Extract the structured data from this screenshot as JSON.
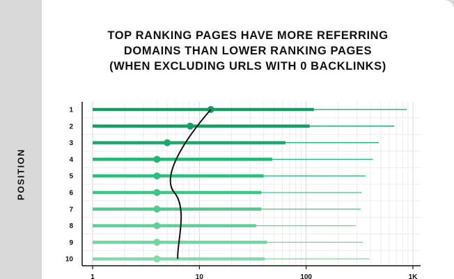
{
  "chart_data": {
    "type": "range-dot",
    "title_lines": [
      "TOP RANKING PAGES HAVE MORE REFERRING",
      "DOMAINS THAN LOWER RANKING PAGES",
      "(WHEN EXCLUDING URLS WITH 0 BACKLINKS)"
    ],
    "ylabel": "POSITION",
    "xlabel": "",
    "x_scale": "log",
    "xlim": [
      1,
      1000
    ],
    "x_ticks": [
      "1",
      "10",
      "100",
      "1K"
    ],
    "x_tick_values": [
      1,
      10,
      100,
      1000
    ],
    "grid": true,
    "rows": [
      {
        "position": "1",
        "median": 12.8,
        "thick_end": 118,
        "thin_end": 880
      },
      {
        "position": "2",
        "median": 8.2,
        "thick_end": 108,
        "thin_end": 670
      },
      {
        "position": "3",
        "median": 5.0,
        "thick_end": 64,
        "thin_end": 480
      },
      {
        "position": "4",
        "median": 4.0,
        "thick_end": 48,
        "thin_end": 420
      },
      {
        "position": "5",
        "median": 4.0,
        "thick_end": 40,
        "thin_end": 360
      },
      {
        "position": "6",
        "median": 4.0,
        "thick_end": 38,
        "thin_end": 330
      },
      {
        "position": "7",
        "median": 4.0,
        "thick_end": 38,
        "thin_end": 325
      },
      {
        "position": "8",
        "median": 4.0,
        "thick_end": 34,
        "thin_end": 290
      },
      {
        "position": "9",
        "median": 4.0,
        "thick_end": 43,
        "thin_end": 340
      },
      {
        "position": "10",
        "median": 4.0,
        "thick_end": 41,
        "thin_end": 390
      }
    ],
    "colors": [
      "#179a63",
      "#199e66",
      "#1da86c",
      "#22b873",
      "#2dbf7b",
      "#3dc685",
      "#4fcb8e",
      "#61d098",
      "#73d5a2",
      "#85daac"
    ]
  }
}
